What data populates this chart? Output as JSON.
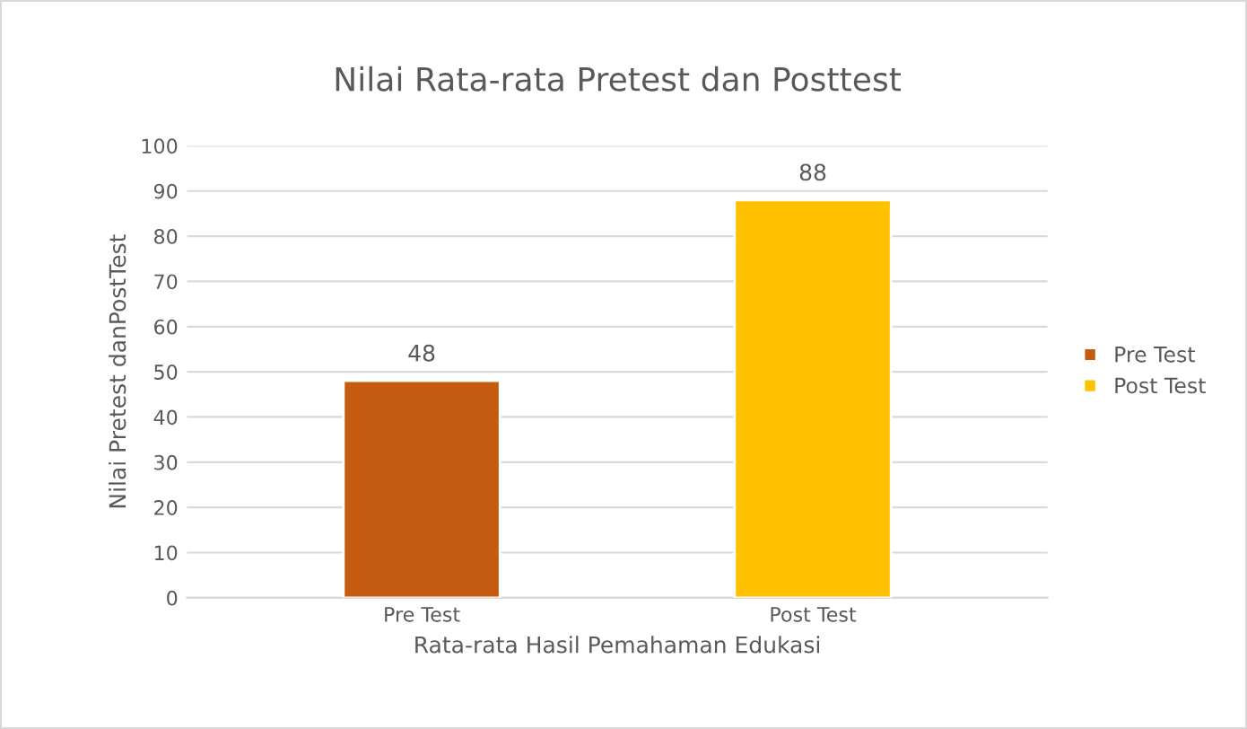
{
  "chart_data": {
    "type": "bar",
    "title": "Nilai Rata-rata Pretest dan Posttest",
    "xlabel": "Rata-rata Hasil Pemahaman Edukasi",
    "ylabel": "Nilai Pretest danPostTest",
    "categories": [
      "Pre Test",
      "Post Test"
    ],
    "series": [
      {
        "name": "Pre Test",
        "color": "#c55a11",
        "values": [
          48,
          null
        ]
      },
      {
        "name": "Post Test",
        "color": "#ffc000",
        "values": [
          null,
          88
        ]
      }
    ],
    "ylim": [
      0,
      100
    ],
    "yticks": [
      0,
      10,
      20,
      30,
      40,
      50,
      60,
      70,
      80,
      90,
      100
    ],
    "grid": "y",
    "legend": "right",
    "data_labels": true
  }
}
